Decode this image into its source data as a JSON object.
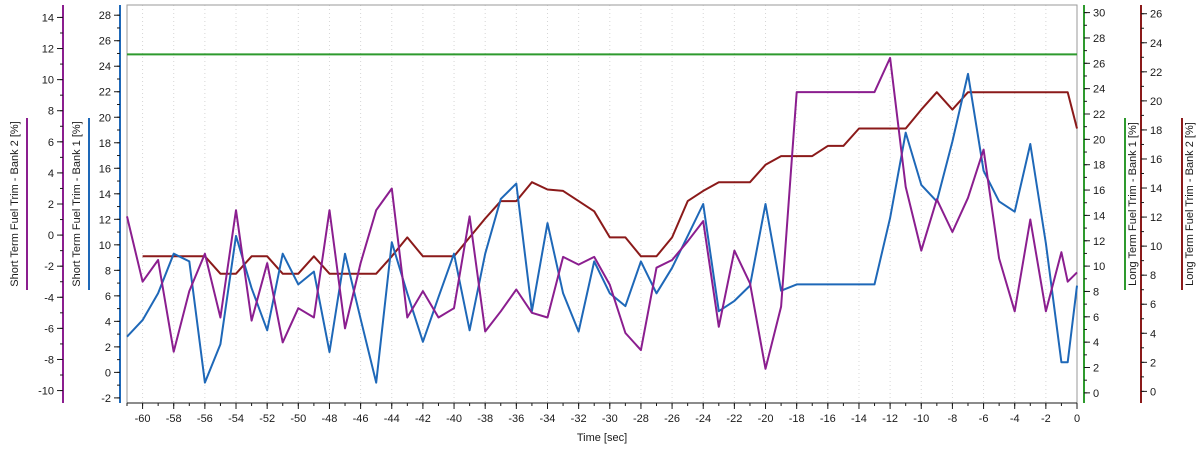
{
  "chart_data": {
    "type": "line",
    "title": "",
    "grid": true,
    "x": {
      "label": "Time [sec]",
      "range": [
        -61,
        0
      ],
      "ticks": [
        -60,
        -58,
        -56,
        -54,
        -52,
        -50,
        -48,
        -46,
        -44,
        -42,
        -40,
        -38,
        -36,
        -34,
        -32,
        -30,
        -28,
        -26,
        -24,
        -22,
        -20,
        -18,
        -16,
        -14,
        -12,
        -10,
        -8,
        -6,
        -4,
        -2,
        0
      ]
    },
    "axes": [
      {
        "id": "st2",
        "label": "Short Term Fuel Trim - Bank 2 [%]",
        "side": "left",
        "color": "#8b1e8f",
        "range": [
          -10.8,
          14.8
        ],
        "ticks": [
          -10,
          -8,
          -6,
          -4,
          -2,
          0,
          2,
          4,
          6,
          8,
          10,
          12,
          14
        ]
      },
      {
        "id": "st1",
        "label": "Short Term Fuel Trim - Bank 1 [%]",
        "side": "left",
        "color": "#1e68b8",
        "range": [
          -2.4,
          28.8
        ],
        "ticks": [
          -2,
          0,
          2,
          4,
          6,
          8,
          10,
          12,
          14,
          16,
          18,
          20,
          22,
          24,
          26,
          28
        ]
      },
      {
        "id": "lt1",
        "label": "Long Term Fuel Trim - Bank 1 [%]",
        "side": "right",
        "color": "#2e9a2e",
        "range": [
          -0.8,
          30.6
        ],
        "ticks": [
          0,
          2,
          4,
          6,
          8,
          10,
          12,
          14,
          16,
          18,
          20,
          22,
          24,
          26,
          28,
          30
        ]
      },
      {
        "id": "lt2",
        "label": "Long Term Fuel Trim - Bank 2 [%]",
        "side": "right",
        "color": "#8b1a1a",
        "range": [
          -0.8,
          26.6
        ],
        "ticks": [
          0,
          2,
          4,
          6,
          8,
          10,
          12,
          14,
          16,
          18,
          20,
          22,
          24,
          26
        ]
      }
    ],
    "series": [
      {
        "axis": "lt1",
        "color": "#2e9a2e",
        "x": [
          -61,
          0
        ],
        "y": [
          26.7,
          26.7
        ]
      },
      {
        "axis": "lt2",
        "color": "#8b1a1a",
        "x": [
          -61,
          -60,
          -59,
          -58,
          -57,
          -56,
          -55,
          -54,
          -53,
          -52,
          -51,
          -50,
          -49,
          -48,
          -47,
          -46,
          -45,
          -44,
          -43,
          -42,
          -41,
          -40,
          -39,
          -38,
          -37,
          -36,
          -35,
          -34,
          -33,
          -32,
          -31,
          -30,
          -29,
          -28,
          -27,
          -26,
          -25,
          -24,
          -23,
          -22,
          -21,
          -20,
          -19,
          -18,
          -17,
          -16,
          -15,
          -14,
          -13,
          -12,
          -11,
          -10,
          -9,
          -8,
          -7,
          -6,
          -5,
          -4,
          -3,
          -2,
          -1,
          -0.6,
          0
        ],
        "y": [
          null,
          9.3,
          9.3,
          9.3,
          9.3,
          9.3,
          8.1,
          8.1,
          9.3,
          9.3,
          8.1,
          8.1,
          9.3,
          8.1,
          8.1,
          8.1,
          8.1,
          9.3,
          10.6,
          9.3,
          9.3,
          9.3,
          10.6,
          11.9,
          13.1,
          13.1,
          14.4,
          13.9,
          13.8,
          13.1,
          12.4,
          10.6,
          10.6,
          9.3,
          9.3,
          10.6,
          13.1,
          13.8,
          14.4,
          14.4,
          14.4,
          15.6,
          16.2,
          16.2,
          16.2,
          16.9,
          16.9,
          18.1,
          18.1,
          18.1,
          18.1,
          19.4,
          20.6,
          19.4,
          20.6,
          20.6,
          20.6,
          20.6,
          20.6,
          20.6,
          20.6,
          20.6,
          18.1
        ]
      },
      {
        "axis": "st1",
        "color": "#1e68b8",
        "x": [
          -61,
          -60,
          -59,
          -58,
          -57,
          -56,
          -55,
          -54,
          -53,
          -52,
          -51,
          -50,
          -49,
          -48,
          -47,
          -46,
          -45,
          -44,
          -43,
          -42,
          -41,
          -40,
          -39,
          -38,
          -37,
          -36,
          -35,
          -34,
          -33,
          -32,
          -31,
          -30,
          -29,
          -28,
          -27,
          -26,
          -25,
          -24,
          -23,
          -22,
          -21,
          -20,
          -19,
          -18,
          -17,
          -16,
          -15,
          -14,
          -13,
          -12,
          -11,
          -10,
          -9,
          -8,
          -7,
          -6,
          -5,
          -4,
          -3,
          -2,
          -1,
          -0.6,
          0
        ],
        "y": [
          2.8,
          4.1,
          6.2,
          9.3,
          8.7,
          -0.8,
          2.2,
          10.7,
          6.6,
          3.3,
          9.3,
          6.9,
          7.9,
          1.6,
          9.3,
          4.2,
          -0.8,
          10.2,
          6.2,
          2.4,
          5.9,
          9.3,
          3.3,
          9.3,
          13.6,
          14.8,
          4.8,
          11.7,
          6.2,
          3.2,
          8.7,
          6.2,
          5.2,
          8.7,
          6.2,
          8.2,
          10.7,
          13.2,
          4.8,
          5.6,
          6.8,
          13.2,
          6.4,
          6.9,
          6.9,
          6.9,
          6.9,
          6.9,
          6.9,
          12.1,
          18.8,
          14.7,
          13.4,
          18.1,
          23.4,
          15.8,
          13.4,
          12.6,
          17.9,
          10.1,
          0.8,
          0.8,
          6.8
        ]
      },
      {
        "axis": "st2",
        "color": "#8b1e8f",
        "x": [
          -61,
          -60,
          -59,
          -58,
          -57,
          -56,
          -55,
          -54,
          -53,
          -52,
          -51,
          -50,
          -49,
          -48,
          -47,
          -46,
          -45,
          -44,
          -43,
          -42,
          -41,
          -40,
          -39,
          -38,
          -37,
          -36,
          -35,
          -34,
          -33,
          -32,
          -31,
          -30,
          -29,
          -28,
          -27,
          -26,
          -25,
          -24,
          -23,
          -22,
          -21,
          -20,
          -19,
          -18,
          -17,
          -16,
          -15,
          -14,
          -13,
          -12,
          -11,
          -10,
          -9,
          -8,
          -7,
          -6,
          -5,
          -4,
          -3,
          -2,
          -1,
          -0.6,
          0
        ],
        "y": [
          1.2,
          -3.0,
          -1.6,
          -7.5,
          -3.6,
          -1.2,
          -5.3,
          1.6,
          -5.5,
          -1.8,
          -6.9,
          -4.7,
          -5.3,
          1.6,
          -6.0,
          -1.8,
          1.6,
          3.0,
          -5.3,
          -3.6,
          -5.3,
          -4.7,
          1.2,
          -6.2,
          -4.9,
          -3.5,
          -5.0,
          -5.3,
          -1.4,
          -1.9,
          -1.4,
          -3.2,
          -6.3,
          -7.4,
          -2.1,
          -1.6,
          -0.4,
          0.9,
          -5.9,
          -1.0,
          -3.1,
          -8.6,
          -4.6,
          9.2,
          9.2,
          9.2,
          9.2,
          9.2,
          9.2,
          11.4,
          3.1,
          -1.0,
          2.3,
          0.2,
          2.4,
          5.5,
          -1.5,
          -4.9,
          1.0,
          -4.9,
          -1.1,
          -3.0,
          -2.4
        ]
      }
    ]
  }
}
